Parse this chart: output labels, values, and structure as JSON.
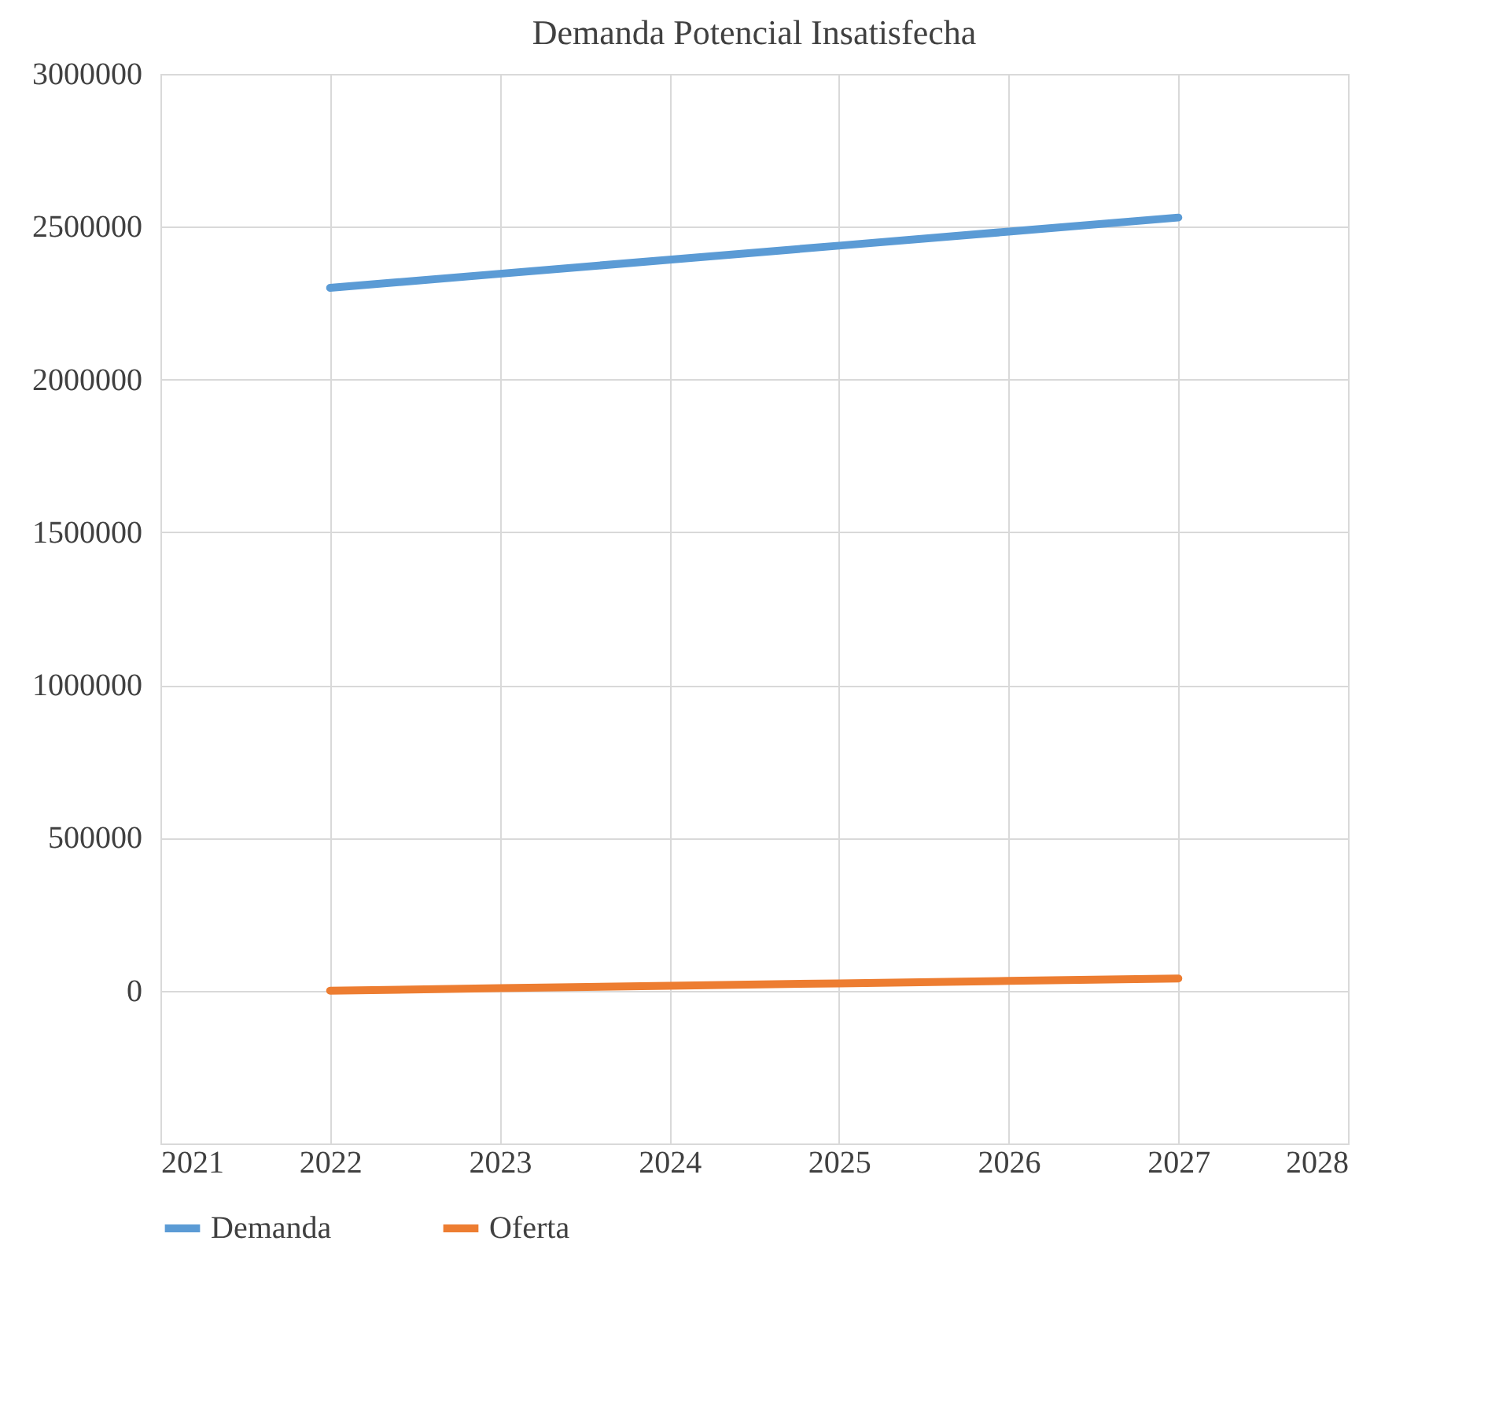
{
  "chart_data": {
    "type": "line",
    "title": "Demanda Potencial Insatisfecha",
    "x": [
      2022,
      2023,
      2024,
      2025,
      2026,
      2027
    ],
    "series": [
      {
        "name": "Demanda",
        "color": "#5b9bd5",
        "values": [
          2300000,
          2346000,
          2392000,
          2438000,
          2484000,
          2530000
        ]
      },
      {
        "name": "Oferta",
        "color": "#ed7d31",
        "values": [
          0,
          8000,
          16000,
          24000,
          32000,
          40000
        ]
      }
    ],
    "xlim": [
      2021,
      2028
    ],
    "xticks": [
      2021,
      2022,
      2023,
      2024,
      2025,
      2026,
      2027,
      2028
    ],
    "ylim": [
      -500000,
      3000000
    ],
    "yticks": [
      0,
      500000,
      1000000,
      1500000,
      2000000,
      2500000,
      3000000
    ],
    "grid": true,
    "legend": "bottom",
    "marker": "none",
    "line_style": "solid"
  }
}
